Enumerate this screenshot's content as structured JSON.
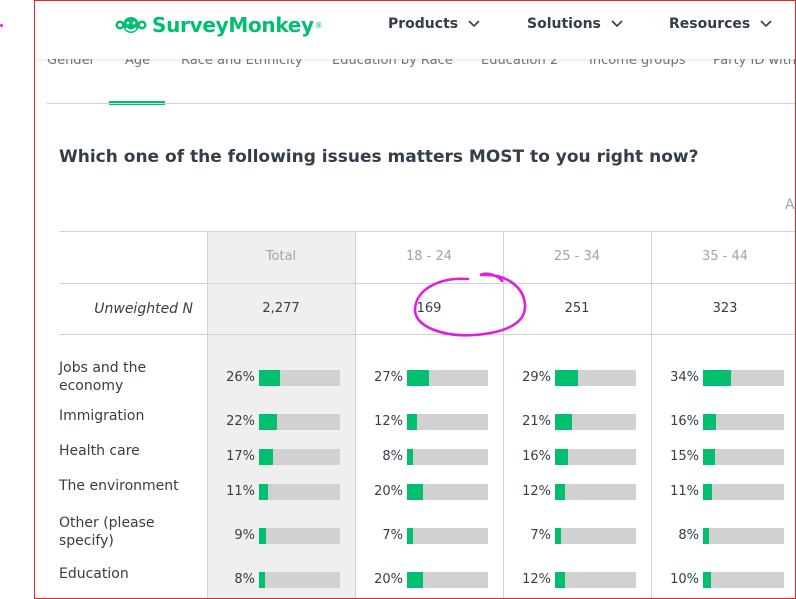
{
  "header": {
    "logo_text": "SurveyMonkey",
    "logo_mark": "®",
    "nav": [
      {
        "label": "Products"
      },
      {
        "label": "Solutions"
      },
      {
        "label": "Resources"
      }
    ]
  },
  "tabs": [
    {
      "label": "Gender"
    },
    {
      "label": "Age",
      "active": true
    },
    {
      "label": "Race and Ethnicity"
    },
    {
      "label": "Education by Race"
    },
    {
      "label": "Education 2"
    },
    {
      "label": "Income groups"
    },
    {
      "label": "Party ID with"
    }
  ],
  "question": "Which one of the following issues matters MOST to you right now?",
  "overflow_letter": "A",
  "table": {
    "columns": [
      "Total",
      "18 - 24",
      "25 - 34",
      "35 - 44"
    ],
    "unweighted_label": "Unweighted N",
    "unweighted_values": [
      "2,277",
      "169",
      "251",
      "323"
    ],
    "rows": [
      {
        "label": "Jobs and the economy",
        "values": [
          "26%",
          "27%",
          "29%",
          "34%"
        ],
        "fractions": [
          0.26,
          0.27,
          0.29,
          0.34
        ]
      },
      {
        "label": "Immigration",
        "values": [
          "22%",
          "12%",
          "21%",
          "16%"
        ],
        "fractions": [
          0.22,
          0.12,
          0.21,
          0.16
        ]
      },
      {
        "label": "Health care",
        "values": [
          "17%",
          "8%",
          "16%",
          "15%"
        ],
        "fractions": [
          0.17,
          0.08,
          0.16,
          0.15
        ]
      },
      {
        "label": "The environment",
        "values": [
          "11%",
          "20%",
          "12%",
          "11%"
        ],
        "fractions": [
          0.11,
          0.2,
          0.12,
          0.11
        ]
      },
      {
        "label": "Other (please specify)",
        "values": [
          "9%",
          "7%",
          "7%",
          "8%"
        ],
        "fractions": [
          0.09,
          0.07,
          0.07,
          0.08
        ]
      },
      {
        "label": "Education",
        "values": [
          "8%",
          "20%",
          "12%",
          "10%"
        ],
        "fractions": [
          0.08,
          0.2,
          0.12,
          0.1
        ]
      }
    ]
  },
  "colors": {
    "accent": "#00bf6f",
    "bar_track": "#d1d1d1",
    "annotation": "#e01ee0",
    "frame_border": "#d9262f"
  }
}
